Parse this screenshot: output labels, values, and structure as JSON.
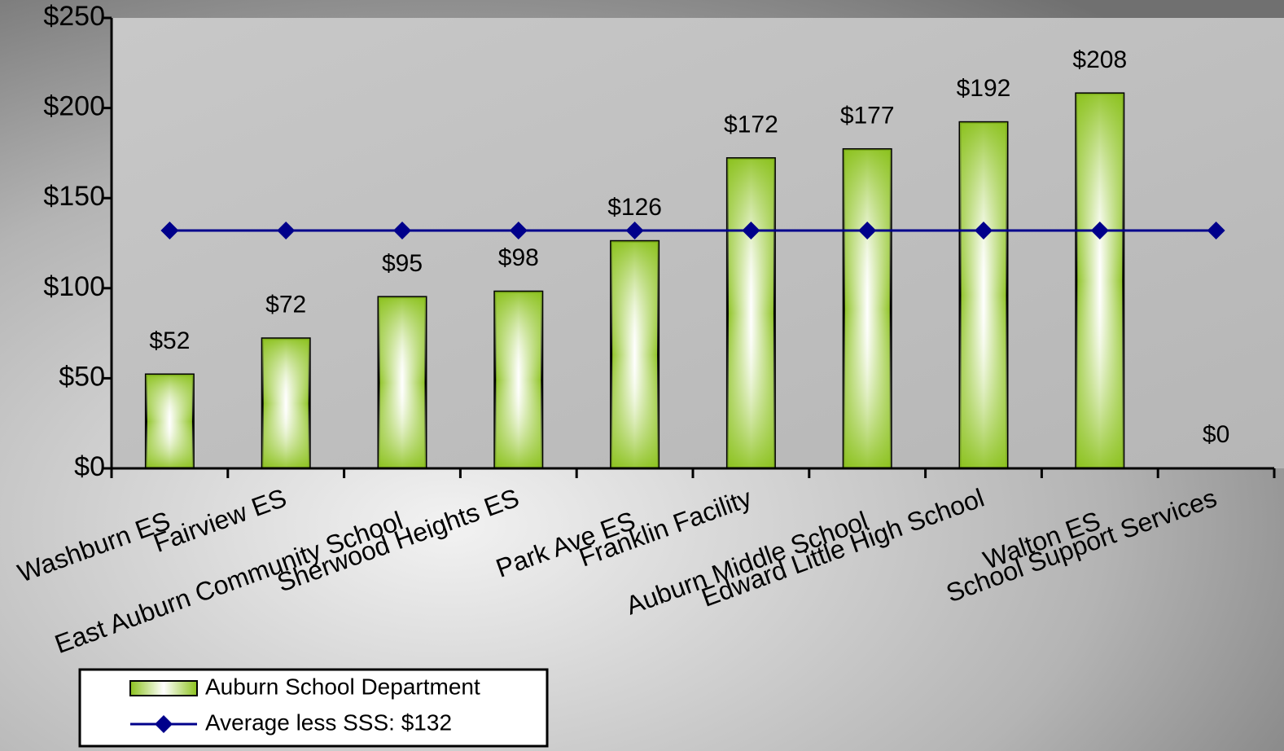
{
  "chart_data": {
    "type": "bar",
    "categories": [
      "Washburn ES",
      "Fairview ES",
      "East Auburn Community School",
      "Sherwood Heights ES",
      "Park Ave ES",
      "Franklin Facility",
      "Auburn Middle School",
      "Edward Little High School",
      "Walton ES",
      "School Support Services"
    ],
    "series": [
      {
        "name": "Auburn School Department",
        "type": "bar",
        "color": "#9acd32",
        "values": [
          52,
          72,
          95,
          98,
          126,
          172,
          177,
          192,
          208,
          0
        ],
        "value_labels": [
          "$52",
          "$72",
          "$95",
          "$98",
          "$126",
          "$172",
          "$177",
          "$192",
          "$208",
          "$0"
        ]
      },
      {
        "name": "Average less SSS: $132",
        "type": "line",
        "color": "#00008b",
        "values": [
          132,
          132,
          132,
          132,
          132,
          132,
          132,
          132,
          132,
          132
        ]
      }
    ],
    "ylim": [
      0,
      250
    ],
    "yticks": [
      {
        "value": 0,
        "label": "$0"
      },
      {
        "value": 50,
        "label": "$50"
      },
      {
        "value": 100,
        "label": "$100"
      },
      {
        "value": 150,
        "label": "$150"
      },
      {
        "value": 200,
        "label": "$200"
      },
      {
        "value": 250,
        "label": "$250"
      }
    ],
    "legend": "bottom-left"
  }
}
